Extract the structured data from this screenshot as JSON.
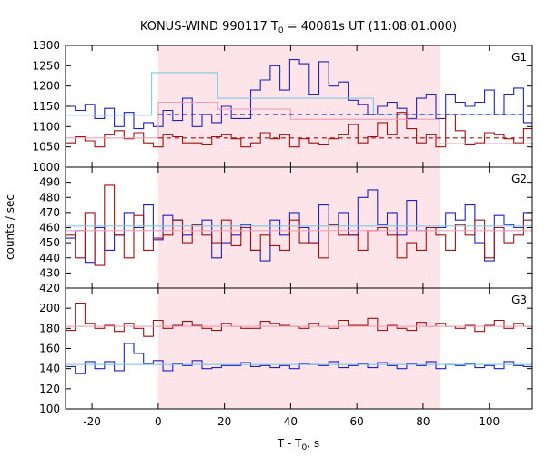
{
  "chart_data": {
    "type": "line",
    "title": {
      "prefix": "KONUS-WIND 990117 T",
      "sub": "0",
      "suffix": " = 40081s UT (11:08:01.000)"
    },
    "xlabel": {
      "prefix": "T - T",
      "sub": "0",
      "suffix": ", s"
    },
    "ylabel": "counts / sec",
    "xlim": [
      -28,
      113
    ],
    "xticks": [
      -20,
      0,
      20,
      40,
      60,
      80,
      100
    ],
    "xtick_labels": [
      "-20",
      "0",
      "20",
      "40",
      "60",
      "80",
      "100"
    ],
    "shaded_interval": [
      0,
      85
    ],
    "colors": {
      "blue": "#2020c0",
      "red": "#a01010",
      "lightblue": "#80c8e8",
      "pink": "#f0a0b8",
      "shade": "#fde4e8",
      "axis": "#000000"
    },
    "panels": [
      {
        "label": "G1",
        "ylim": [
          1000,
          1300
        ],
        "yticks": [
          1000,
          1050,
          1100,
          1150,
          1200,
          1250,
          1300
        ],
        "bin_width": 2.944,
        "series": [
          {
            "color_key": "blue",
            "start": -28,
            "values": [
              1150,
              1140,
              1155,
              1120,
              1145,
              1100,
              1135,
              1095,
              1110,
              1100,
              1140,
              1115,
              1170,
              1100,
              1130,
              1110,
              1150,
              1120,
              1120,
              1190,
              1215,
              1250,
              1190,
              1265,
              1255,
              1180,
              1260,
              1200,
              1210,
              1165,
              1155,
              1130,
              1150,
              1160,
              1145,
              1120,
              1170,
              1180,
              1120,
              1180,
              1160,
              1150,
              1160,
              1190,
              1130,
              1180,
              1195,
              1110,
              1130,
              1145,
              1100,
              1160,
              1130,
              1140,
              1135,
              1120,
              1145,
              1100,
              1125,
              1130,
              1140,
              1165,
              1130,
              1130,
              1145,
              1120,
              1110,
              1130,
              1140,
              1170,
              1150,
              1120,
              1145,
              1100,
              1130,
              1155,
              1145,
              1115,
              1120,
              1130,
              1110,
              1140,
              1175,
              1120,
              1125,
              1150,
              1160,
              1130,
              1145,
              1120,
              1100,
              1130,
              1140,
              1120,
              1150,
              1110,
              1135,
              1120,
              1140,
              1130,
              1155,
              1120,
              1130,
              1140,
              1125,
              1145,
              1120,
              1135,
              1100,
              1110,
              1150,
              1120,
              1130,
              1140,
              1125,
              1160,
              1120,
              1130,
              1145,
              1130,
              1160
            ]
          },
          {
            "color_key": "red",
            "start": -28,
            "values": [
              1060,
              1075,
              1065,
              1050,
              1080,
              1090,
              1070,
              1085,
              1060,
              1050,
              1080,
              1075,
              1060,
              1060,
              1055,
              1075,
              1080,
              1070,
              1050,
              1060,
              1085,
              1070,
              1080,
              1050,
              1070,
              1060,
              1055,
              1070,
              1080,
              1105,
              1060,
              1075,
              1110,
              1080,
              1135,
              1095,
              1060,
              1080,
              1050,
              1130,
              1090,
              1055,
              1060,
              1085,
              1080,
              1070,
              1060,
              1095,
              1080,
              1090,
              1065,
              1070,
              1085,
              1080,
              1060,
              1075,
              1065,
              1080,
              1070,
              1060,
              1080,
              1100,
              1075,
              1090,
              1070,
              1080,
              1080,
              1055,
              1065,
              1110,
              1090,
              1050,
              1080,
              1060,
              1080,
              1095,
              1100,
              1090,
              1080,
              1060,
              1085,
              1100,
              1060,
              1090,
              1070,
              1075,
              1060,
              1080,
              1070,
              1090,
              1060,
              1070,
              1075,
              1060,
              1080,
              1065,
              1070,
              1060,
              1075,
              1085,
              1065,
              1080,
              1070,
              1060,
              1075,
              1070,
              1080,
              1060,
              1075,
              1065,
              1080,
              1070,
              1060,
              1080,
              1070,
              1065,
              1075,
              1060,
              1080,
              1070,
              1060
            ]
          },
          {
            "color_key": "lightblue",
            "steps": [
              [
                -28,
                1128
              ],
              [
                -2,
                1233
              ],
              [
                18,
                1170
              ],
              [
                65,
                1130
              ],
              [
                113,
                1130
              ]
            ]
          },
          {
            "color_key": "pink",
            "steps": [
              [
                -28,
                1072
              ],
              [
                0,
                1160
              ],
              [
                18,
                1143
              ],
              [
                40,
                1118
              ],
              [
                85,
                1058
              ],
              [
                113,
                1058
              ]
            ]
          }
        ],
        "dashed": [
          {
            "color_key": "blue",
            "from": 0,
            "to": 113,
            "value": 1130
          },
          {
            "color_key": "red",
            "from": 0,
            "to": 113,
            "value": 1072
          }
        ]
      },
      {
        "label": "G2",
        "ylim": [
          420,
          500
        ],
        "yticks": [
          420,
          430,
          440,
          450,
          460,
          470,
          480,
          490
        ],
        "bin_width": 2.944,
        "series": [
          {
            "color_key": "blue",
            "start": -28,
            "values": [
              453,
              458,
              437,
              460,
              445,
              455,
              470,
              460,
              475,
              452,
              468,
              465,
              455,
              462,
              465,
              440,
              450,
              455,
              462,
              445,
              438,
              465,
              455,
              470,
              460,
              450,
              475,
              462,
              470,
              455,
              480,
              485,
              462,
              470,
              455,
              478,
              458,
              460,
              460,
              470,
              465,
              475,
              450,
              438,
              468,
              462,
              460,
              470,
              470,
              450,
              475,
              468,
              452,
              460,
              470,
              475,
              445,
              460,
              468,
              475,
              462,
              468,
              470,
              463,
              465,
              462,
              470,
              455,
              460,
              465,
              475,
              445,
              455,
              460,
              470,
              455,
              462,
              460,
              470,
              455,
              465,
              460,
              470,
              445,
              470,
              458,
              460,
              455,
              465,
              470,
              455,
              462,
              465,
              450,
              470,
              462,
              460,
              455,
              470,
              460,
              465,
              458,
              470,
              455,
              462,
              465,
              470,
              455,
              460,
              465,
              470,
              455,
              460,
              465,
              458,
              470,
              455,
              460,
              465,
              470,
              458
            ]
          },
          {
            "color_key": "red",
            "start": -28,
            "values": [
              455,
              440,
              470,
              435,
              488,
              455,
              440,
              468,
              445,
              453,
              455,
              465,
              450,
              462,
              455,
              450,
              465,
              448,
              460,
              445,
              455,
              448,
              445,
              465,
              450,
              450,
              440,
              462,
              455,
              455,
              445,
              458,
              460,
              455,
              440,
              450,
              445,
              460,
              455,
              445,
              462,
              455,
              465,
              440,
              460,
              450,
              455,
              465,
              470,
              468,
              440,
              455,
              460,
              445,
              450,
              455,
              465,
              452,
              462,
              458,
              455,
              460,
              452,
              465,
              455,
              458,
              460,
              450,
              455,
              445,
              465,
              455,
              448,
              460,
              455,
              450,
              462,
              455,
              458,
              452,
              460,
              455,
              450,
              458,
              455,
              448,
              462,
              455,
              458,
              450,
              455,
              460,
              452,
              458,
              455,
              460,
              450,
              455,
              458,
              452,
              460,
              455,
              458,
              450,
              455,
              460,
              452,
              458,
              455,
              460,
              450,
              455,
              458,
              452,
              460,
              455,
              458,
              450,
              455,
              460,
              452
            ]
          },
          {
            "color_key": "lightblue",
            "steps": [
              [
                -28,
                461
              ],
              [
                113,
                461
              ]
            ]
          },
          {
            "color_key": "pink",
            "steps": [
              [
                -28,
                458
              ],
              [
                113,
                458
              ]
            ]
          }
        ],
        "dashed": []
      },
      {
        "label": "G3",
        "ylim": [
          100,
          220
        ],
        "yticks": [
          100,
          120,
          140,
          160,
          180,
          200
        ],
        "bin_width": 2.944,
        "series": [
          {
            "color_key": "red",
            "start": -28,
            "values": [
              178,
              205,
              185,
              180,
              183,
              177,
              185,
              180,
              172,
              188,
              180,
              183,
              187,
              183,
              180,
              178,
              185,
              182,
              180,
              180,
              187,
              185,
              183,
              182,
              180,
              185,
              182,
              180,
              188,
              183,
              183,
              190,
              178,
              183,
              180,
              178,
              186,
              182,
              185,
              182,
              180,
              183,
              177,
              183,
              188,
              180,
              185,
              182,
              178,
              180,
              188,
              183,
              182,
              180,
              178,
              185,
              183,
              170,
              185,
              180,
              187,
              183,
              182,
              186,
              180,
              183,
              188,
              170,
              180,
              185,
              182,
              182,
              190,
              182,
              178,
              183,
              185,
              180,
              170,
              183,
              185,
              182,
              180,
              182,
              178,
              190,
              185,
              182,
              183,
              180,
              188,
              178,
              185,
              183,
              182,
              180,
              186,
              183,
              178,
              185,
              182,
              180,
              188,
              183,
              182,
              180,
              185,
              183,
              178,
              185,
              182,
              180,
              183,
              185,
              182,
              180,
              186,
              183,
              178,
              185,
              182
            ]
          },
          {
            "color_key": "blue",
            "start": -28,
            "values": [
              142,
              135,
              147,
              140,
              147,
              138,
              165,
              155,
              145,
              148,
              138,
              145,
              143,
              148,
              140,
              141,
              143,
              143,
              146,
              142,
              143,
              141,
              143,
              140,
              145,
              144,
              143,
              147,
              141,
              143,
              145,
              141,
              146,
              143,
              140,
              145,
              143,
              147,
              140,
              144,
              143,
              145,
              141,
              143,
              140,
              147,
              143,
              142,
              145,
              141,
              143,
              148,
              140,
              144,
              142,
              145,
              143,
              141,
              143,
              146,
              142,
              144,
              140,
              145,
              143,
              141,
              148,
              143,
              140,
              145,
              142,
              143,
              146,
              141,
              143,
              145,
              140,
              144,
              142,
              147,
              143,
              141,
              145,
              143,
              140,
              145,
              142,
              144,
              143,
              141,
              146,
              143,
              140,
              144,
              142,
              145,
              143,
              141,
              144,
              142,
              146,
              143,
              140,
              145,
              142,
              143,
              144,
              141,
              145,
              143,
              140,
              146,
              142,
              143,
              145,
              141,
              144,
              142,
              143,
              140,
              145
            ]
          },
          {
            "color_key": "lightblue",
            "steps": [
              [
                -28,
                144
              ],
              [
                113,
                144
              ]
            ]
          },
          {
            "color_key": "pink",
            "steps": [
              [
                -28,
                182
              ],
              [
                113,
                182
              ]
            ]
          }
        ],
        "dashed": []
      }
    ]
  }
}
